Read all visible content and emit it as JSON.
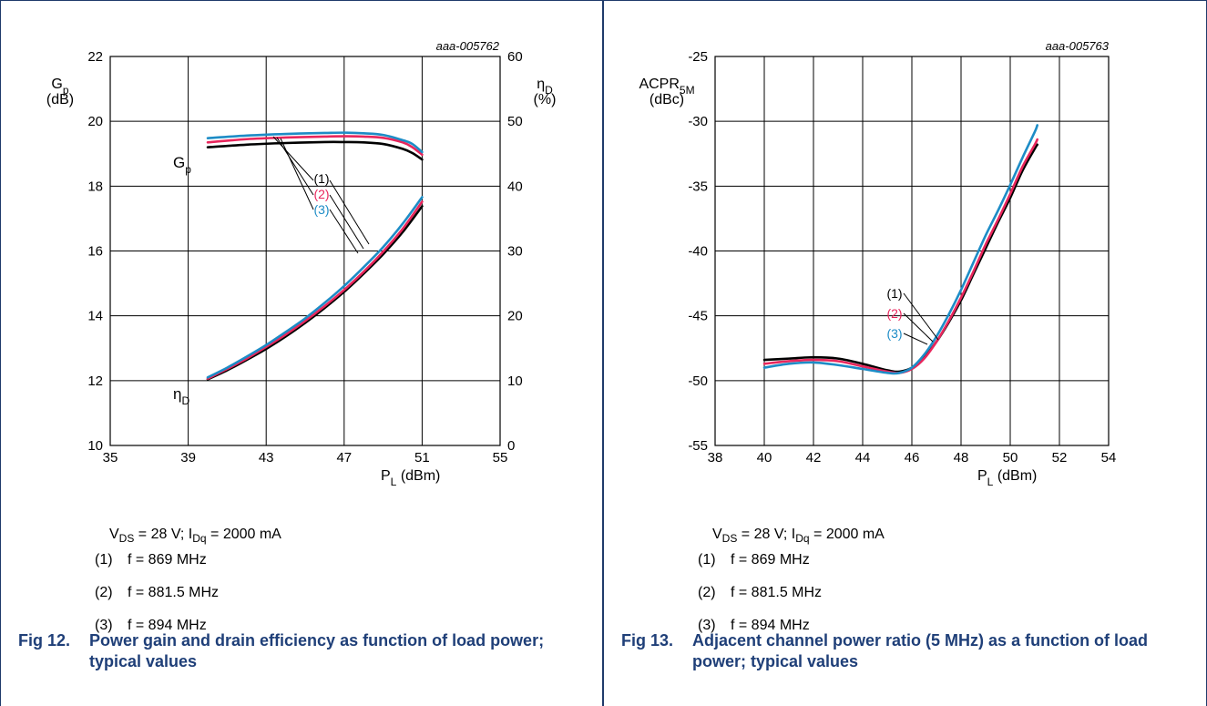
{
  "colors": {
    "c1": "#000000",
    "c2": "#e8265c",
    "c3": "#1d8cc6",
    "caption": "#1f3f78",
    "grid": "#000000"
  },
  "left": {
    "code": "aaa-005762",
    "gain_label": "G",
    "gain_label_sub": "p",
    "gain_unit": "(dB)",
    "eff_label": "η",
    "eff_label_sub": "D",
    "eff_unit": "(%)",
    "xlabel": "P",
    "xlabel_sub": "L",
    "xlabel_unit": "(dBm)",
    "curve_label_gp": "G",
    "curve_label_gp_sub": "p",
    "curve_label_eta": "η",
    "curve_label_eta_sub": "D",
    "callouts": [
      "(1)",
      "(2)",
      "(3)"
    ],
    "cond_vds": "V",
    "cond_vds_sub": "DS",
    "cond_mid": " = 28 V; I",
    "cond_idq_sub": "Dq",
    "cond_end": " = 2000 mA",
    "notes": [
      {
        "num": "(1)",
        "text": "f = 869 MHz"
      },
      {
        "num": "(2)",
        "text": "f = 881.5 MHz"
      },
      {
        "num": "(3)",
        "text": "f = 894 MHz"
      }
    ],
    "caption_fig": "Fig 12.",
    "caption_text": "Power gain and drain efficiency as function of load power; typical values"
  },
  "right": {
    "code": "aaa-005763",
    "ylabel": "ACPR",
    "ylabel_sub": "5M",
    "yunit": "(dBc)",
    "xlabel": "P",
    "xlabel_sub": "L",
    "xlabel_unit": "(dBm)",
    "callouts": [
      "(1)",
      "(2)",
      "(3)"
    ],
    "cond_vds": "V",
    "cond_vds_sub": "DS",
    "cond_mid": " = 28 V; I",
    "cond_idq_sub": "Dq",
    "cond_end": " = 2000 mA",
    "notes": [
      {
        "num": "(1)",
        "text": "f = 869 MHz"
      },
      {
        "num": "(2)",
        "text": "f = 881.5 MHz"
      },
      {
        "num": "(3)",
        "text": "f = 894 MHz"
      }
    ],
    "caption_fig": "Fig 13.",
    "caption_text": "Adjacent channel power ratio (5 MHz) as a function of load power; typical values"
  },
  "chart_data": [
    {
      "type": "line",
      "x_ticks": [
        35,
        39,
        43,
        47,
        51,
        55
      ],
      "xlim": [
        35,
        55
      ],
      "y_ticks": [
        10,
        12,
        14,
        16,
        18,
        20,
        22
      ],
      "ylim": [
        10,
        22
      ],
      "y2_ticks": [
        0,
        10,
        20,
        30,
        40,
        50,
        60
      ],
      "y2lim": [
        0,
        60
      ],
      "grid": true,
      "series": [
        {
          "name": "(1)",
          "axis": "left",
          "color": "#000000",
          "x": [
            40,
            42,
            44,
            46,
            47,
            48,
            49,
            50,
            50.5,
            51
          ],
          "values": [
            19.2,
            19.28,
            19.33,
            19.36,
            19.36,
            19.35,
            19.3,
            19.15,
            19.02,
            18.82
          ]
        },
        {
          "name": "(2)",
          "axis": "left",
          "color": "#e8265c",
          "x": [
            40,
            42,
            44,
            46,
            47,
            48,
            49,
            50,
            50.5,
            51
          ],
          "values": [
            19.35,
            19.45,
            19.5,
            19.53,
            19.54,
            19.53,
            19.49,
            19.35,
            19.2,
            18.97
          ]
        },
        {
          "name": "(3)",
          "axis": "left",
          "color": "#1d8cc6",
          "x": [
            40,
            42,
            44,
            46,
            47,
            48,
            49,
            50,
            50.5,
            51
          ],
          "values": [
            19.48,
            19.56,
            19.61,
            19.64,
            19.65,
            19.63,
            19.58,
            19.42,
            19.3,
            19.05
          ]
        },
        {
          "name": "(1)",
          "axis": "right",
          "color": "#000000",
          "x": [
            40,
            41,
            42,
            43,
            44,
            45,
            46,
            47,
            48,
            49,
            50,
            51
          ],
          "values": [
            10.2,
            11.6,
            13.2,
            14.9,
            16.8,
            18.9,
            21.2,
            23.7,
            26.5,
            29.5,
            32.9,
            36.9
          ]
        },
        {
          "name": "(2)",
          "axis": "right",
          "color": "#e8265c",
          "x": [
            40,
            41,
            42,
            43,
            44,
            45,
            46,
            47,
            48,
            49,
            50,
            51
          ],
          "values": [
            10.3,
            11.8,
            13.4,
            15.2,
            17.1,
            19.2,
            21.5,
            24.0,
            26.8,
            29.9,
            33.4,
            37.6
          ]
        },
        {
          "name": "(3)",
          "axis": "right",
          "color": "#1d8cc6",
          "x": [
            40,
            41,
            42,
            43,
            44,
            45,
            46,
            47,
            48,
            49,
            50,
            51
          ],
          "values": [
            10.5,
            12.0,
            13.7,
            15.5,
            17.5,
            19.6,
            22.0,
            24.6,
            27.5,
            30.6,
            34.2,
            38.3
          ]
        }
      ]
    },
    {
      "type": "line",
      "x_ticks": [
        38,
        40,
        42,
        44,
        46,
        48,
        50,
        52,
        54
      ],
      "xlim": [
        38,
        54
      ],
      "y_ticks": [
        -55,
        -50,
        -45,
        -40,
        -35,
        -30,
        -25
      ],
      "ylim": [
        -55,
        -25
      ],
      "grid": true,
      "series": [
        {
          "name": "(1)",
          "color": "#000000",
          "x": [
            40,
            41,
            42,
            43,
            44,
            45,
            45.5,
            46,
            46.5,
            47,
            47.5,
            48,
            48.5,
            49,
            49.5,
            50,
            50.5,
            51,
            51.1
          ],
          "values": [
            -48.4,
            -48.3,
            -48.2,
            -48.3,
            -48.7,
            -49.2,
            -49.3,
            -49.0,
            -48.2,
            -47.0,
            -45.5,
            -43.8,
            -41.8,
            -39.8,
            -37.8,
            -35.9,
            -33.8,
            -32.1,
            -31.8
          ]
        },
        {
          "name": "(2)",
          "color": "#e8265c",
          "x": [
            40,
            41,
            42,
            43,
            44,
            45,
            45.5,
            46,
            46.5,
            47,
            47.5,
            48,
            48.5,
            49,
            49.5,
            50,
            50.5,
            51,
            51.1
          ],
          "values": [
            -48.7,
            -48.5,
            -48.4,
            -48.5,
            -48.9,
            -49.3,
            -49.4,
            -49.1,
            -48.3,
            -47.0,
            -45.4,
            -43.6,
            -41.6,
            -39.5,
            -37.6,
            -35.6,
            -33.5,
            -31.8,
            -31.4
          ]
        },
        {
          "name": "(3)",
          "color": "#1d8cc6",
          "x": [
            40,
            41,
            42,
            43,
            44,
            45,
            45.5,
            46,
            46.5,
            47,
            47.5,
            48,
            48.5,
            49,
            49.5,
            50,
            50.5,
            51,
            51.1
          ],
          "values": [
            -49.0,
            -48.7,
            -48.6,
            -48.8,
            -49.1,
            -49.4,
            -49.4,
            -49.0,
            -48.0,
            -46.6,
            -44.9,
            -43.0,
            -40.9,
            -38.8,
            -36.9,
            -34.9,
            -32.8,
            -30.8,
            -30.3
          ]
        }
      ]
    }
  ]
}
